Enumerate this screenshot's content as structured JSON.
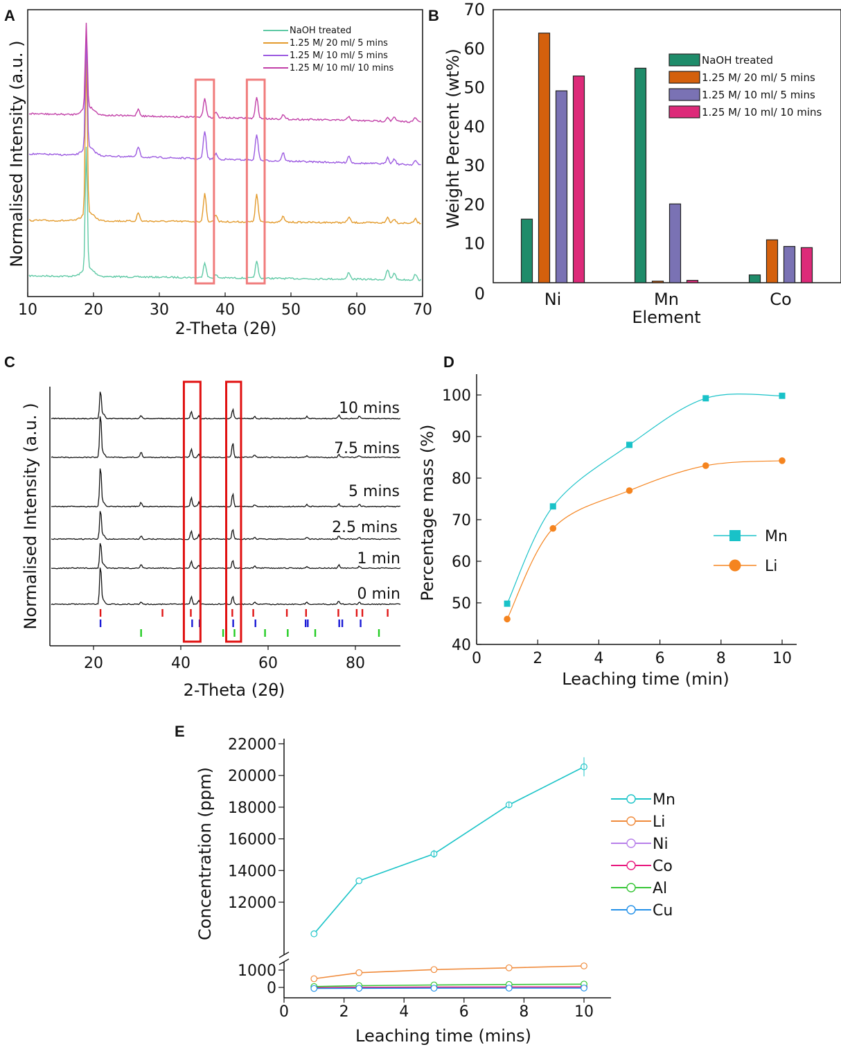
{
  "chart_data": [
    {
      "id": "A",
      "panel_label": "A",
      "type": "line",
      "xlabel": "2-Theta (2θ)",
      "ylabel": "Normalised Intensity (a.u. )",
      "xlim": [
        10,
        70
      ],
      "x_ticks": [
        "10",
        "20",
        "30",
        "40",
        "50",
        "60",
        "70"
      ],
      "highlight_ranges": [
        [
          35.5,
          38.3
        ],
        [
          43.3,
          46.0
        ]
      ],
      "peaks_2theta": [
        18.9,
        26.8,
        36.9,
        38.6,
        44.8,
        48.8,
        58.8,
        64.7,
        65.7,
        68.9
      ],
      "series": [
        {
          "name": "NaOH treated",
          "color": "#5fc9a5"
        },
        {
          "name": "1.25 M/ 20 ml/ 5 mins",
          "color": "#e39a2b"
        },
        {
          "name": "1.25 M/ 10 ml/ 5 mins",
          "color": "#9b59e0"
        },
        {
          "name": "1.25 M/ 10 ml/ 10 mins",
          "color": "#c13fa7"
        }
      ]
    },
    {
      "id": "B",
      "panel_label": "B",
      "type": "bar",
      "xlabel": "Element",
      "ylabel": "Weight Percent (wt%)",
      "ylim": [
        0,
        70
      ],
      "y_ticks": [
        "0",
        "10",
        "20",
        "30",
        "40",
        "50",
        "60",
        "70"
      ],
      "categories": [
        "Ni",
        "Mn",
        "Co"
      ],
      "series": [
        {
          "name": "NaOH treated",
          "color": "#1f8c6a",
          "values": [
            16.3,
            55.0,
            2.0
          ]
        },
        {
          "name": "1.25 M/ 20 ml/ 5 mins",
          "color": "#d4600d",
          "values": [
            64.0,
            0.4,
            11.0
          ]
        },
        {
          "name": "1.25 M/ 10 ml/ 5 mins",
          "color": "#7a72b4",
          "values": [
            49.2,
            20.2,
            9.3
          ]
        },
        {
          "name": "1.25 M/ 10 ml/ 10 mins",
          "color": "#dd2a79",
          "values": [
            53.0,
            0.6,
            9.0
          ]
        }
      ]
    },
    {
      "id": "C",
      "panel_label": "C",
      "type": "line",
      "xlabel": "2-Theta (2θ)",
      "ylabel": "Normalised Intensity (a.u. )",
      "xlim": [
        10,
        90
      ],
      "x_ticks": [
        "20",
        "40",
        "60",
        "80"
      ],
      "highlight_ranges": [
        [
          40.7,
          44.5
        ],
        [
          50.4,
          53.8
        ]
      ],
      "trace_color": "#111111",
      "traces": [
        "10 mins",
        "7.5 mins",
        "5 mins",
        "2.5 mins",
        "1 min",
        "0 min"
      ],
      "peaks_2theta": [
        21.6,
        30.9,
        42.4,
        44.1,
        51.9,
        56.9,
        68.9,
        76.2,
        80.9
      ],
      "reference_ticks": [
        {
          "color": "#e01515",
          "positions": [
            21.6,
            35.8,
            42.3,
            51.8,
            56.6,
            64.3,
            68.7,
            76.1,
            80.3,
            81.6,
            87.4
          ]
        },
        {
          "color": "#1a1ad6",
          "positions": [
            21.6,
            42.6,
            44.3,
            52.0,
            57.1,
            68.6,
            69.1,
            76.3,
            77.0,
            81.2
          ]
        },
        {
          "color": "#22cc22",
          "positions": [
            30.9,
            49.7,
            52.3,
            59.3,
            64.5,
            70.8,
            85.4
          ]
        }
      ]
    },
    {
      "id": "D",
      "panel_label": "D",
      "type": "line",
      "xlabel": "Leaching time (min)",
      "ylabel": "Percentage mass (%)",
      "xlim": [
        0,
        10.3
      ],
      "ylim": [
        40,
        103
      ],
      "x_ticks": [
        "0",
        "2",
        "4",
        "6",
        "8",
        "10"
      ],
      "y_ticks": [
        "40",
        "50",
        "60",
        "70",
        "80",
        "90",
        "100"
      ],
      "series": [
        {
          "name": "Mn",
          "color": "#19c2c8",
          "marker": "square",
          "x": [
            1,
            2.5,
            5,
            7.5,
            10
          ],
          "y": [
            49.8,
            73.2,
            88.0,
            99.2,
            99.8
          ]
        },
        {
          "name": "Li",
          "color": "#f5841f",
          "marker": "circle",
          "x": [
            1,
            2.5,
            5,
            7.5,
            10
          ],
          "y": [
            46.1,
            67.9,
            77.0,
            83.0,
            84.2
          ]
        }
      ]
    },
    {
      "id": "E",
      "panel_label": "E",
      "type": "line",
      "xlabel": "Leaching time (mins)",
      "ylabel": "Concentration (ppm)",
      "xlim": [
        0,
        10.3
      ],
      "axis_break": "y between 1000 and 10000",
      "x_ticks": [
        "0",
        "2",
        "4",
        "6",
        "8",
        "10"
      ],
      "y_ticks_upper": [
        "12000",
        "14000",
        "16000",
        "18000",
        "20000",
        "22000"
      ],
      "y_ticks_lower": [
        "0",
        "1000"
      ],
      "series": [
        {
          "name": "Mn",
          "color": "#1cc4c8",
          "x": [
            1,
            2.5,
            5,
            7.5,
            10
          ],
          "y": [
            10000,
            13350,
            15050,
            18150,
            20550
          ]
        },
        {
          "name": "Li",
          "color": "#f08a3a",
          "x": [
            1,
            2.5,
            5,
            7.5,
            10
          ],
          "y": [
            500,
            850,
            1030,
            1130,
            1240
          ]
        },
        {
          "name": "Ni",
          "color": "#b77fe9",
          "x": [
            1,
            2.5,
            5,
            7.5,
            10
          ],
          "y": [
            -20,
            0,
            10,
            20,
            25
          ]
        },
        {
          "name": "Co",
          "color": "#e8177d",
          "x": [
            1,
            2.5,
            5,
            7.5,
            10
          ],
          "y": [
            -10,
            5,
            15,
            25,
            30
          ]
        },
        {
          "name": "Al",
          "color": "#36c536",
          "x": [
            1,
            2.5,
            5,
            7.5,
            10
          ],
          "y": [
            50,
            100,
            140,
            170,
            190
          ]
        },
        {
          "name": "Cu",
          "color": "#2391e8",
          "x": [
            1,
            2.5,
            5,
            7.5,
            10
          ],
          "y": [
            -60,
            -50,
            -45,
            -40,
            -35
          ]
        }
      ]
    }
  ]
}
